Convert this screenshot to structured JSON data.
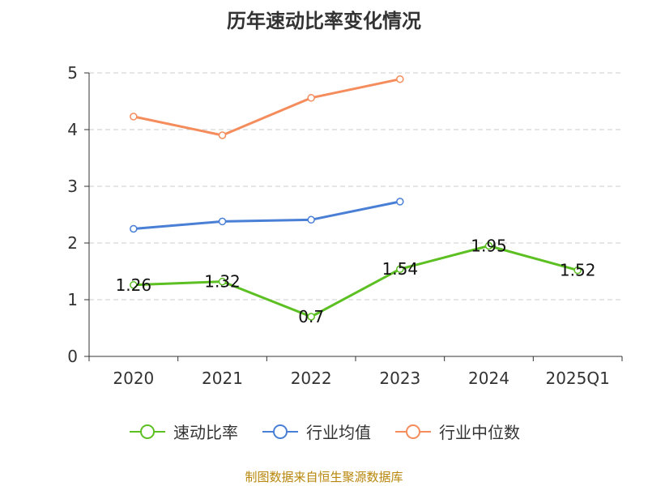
{
  "chart_data": {
    "type": "line",
    "title": "历年速动比率变化情况",
    "categories": [
      "2020",
      "2021",
      "2022",
      "2023",
      "2024",
      "2025Q1"
    ],
    "ylim": [
      0,
      5
    ],
    "yticks": [
      0,
      1,
      2,
      3,
      4,
      5
    ],
    "grid": true,
    "legend_position": "bottom",
    "series": [
      {
        "name": "速动比率",
        "color": "#5cbf22",
        "values": [
          1.26,
          1.32,
          0.7,
          1.54,
          1.95,
          1.52
        ],
        "labels": [
          "1.26",
          "1.32",
          "0.7",
          "1.54",
          "1.95",
          "1.52"
        ],
        "show_labels": true
      },
      {
        "name": "行业均值",
        "color": "#4a7fd6",
        "values": [
          2.25,
          2.38,
          2.41,
          2.73,
          null,
          null
        ],
        "show_labels": false
      },
      {
        "name": "行业中位数",
        "color": "#f48c5c",
        "values": [
          4.23,
          3.9,
          4.56,
          4.89,
          null,
          null
        ],
        "show_labels": false
      }
    ],
    "source": "制图数据来自恒生聚源数据库"
  }
}
